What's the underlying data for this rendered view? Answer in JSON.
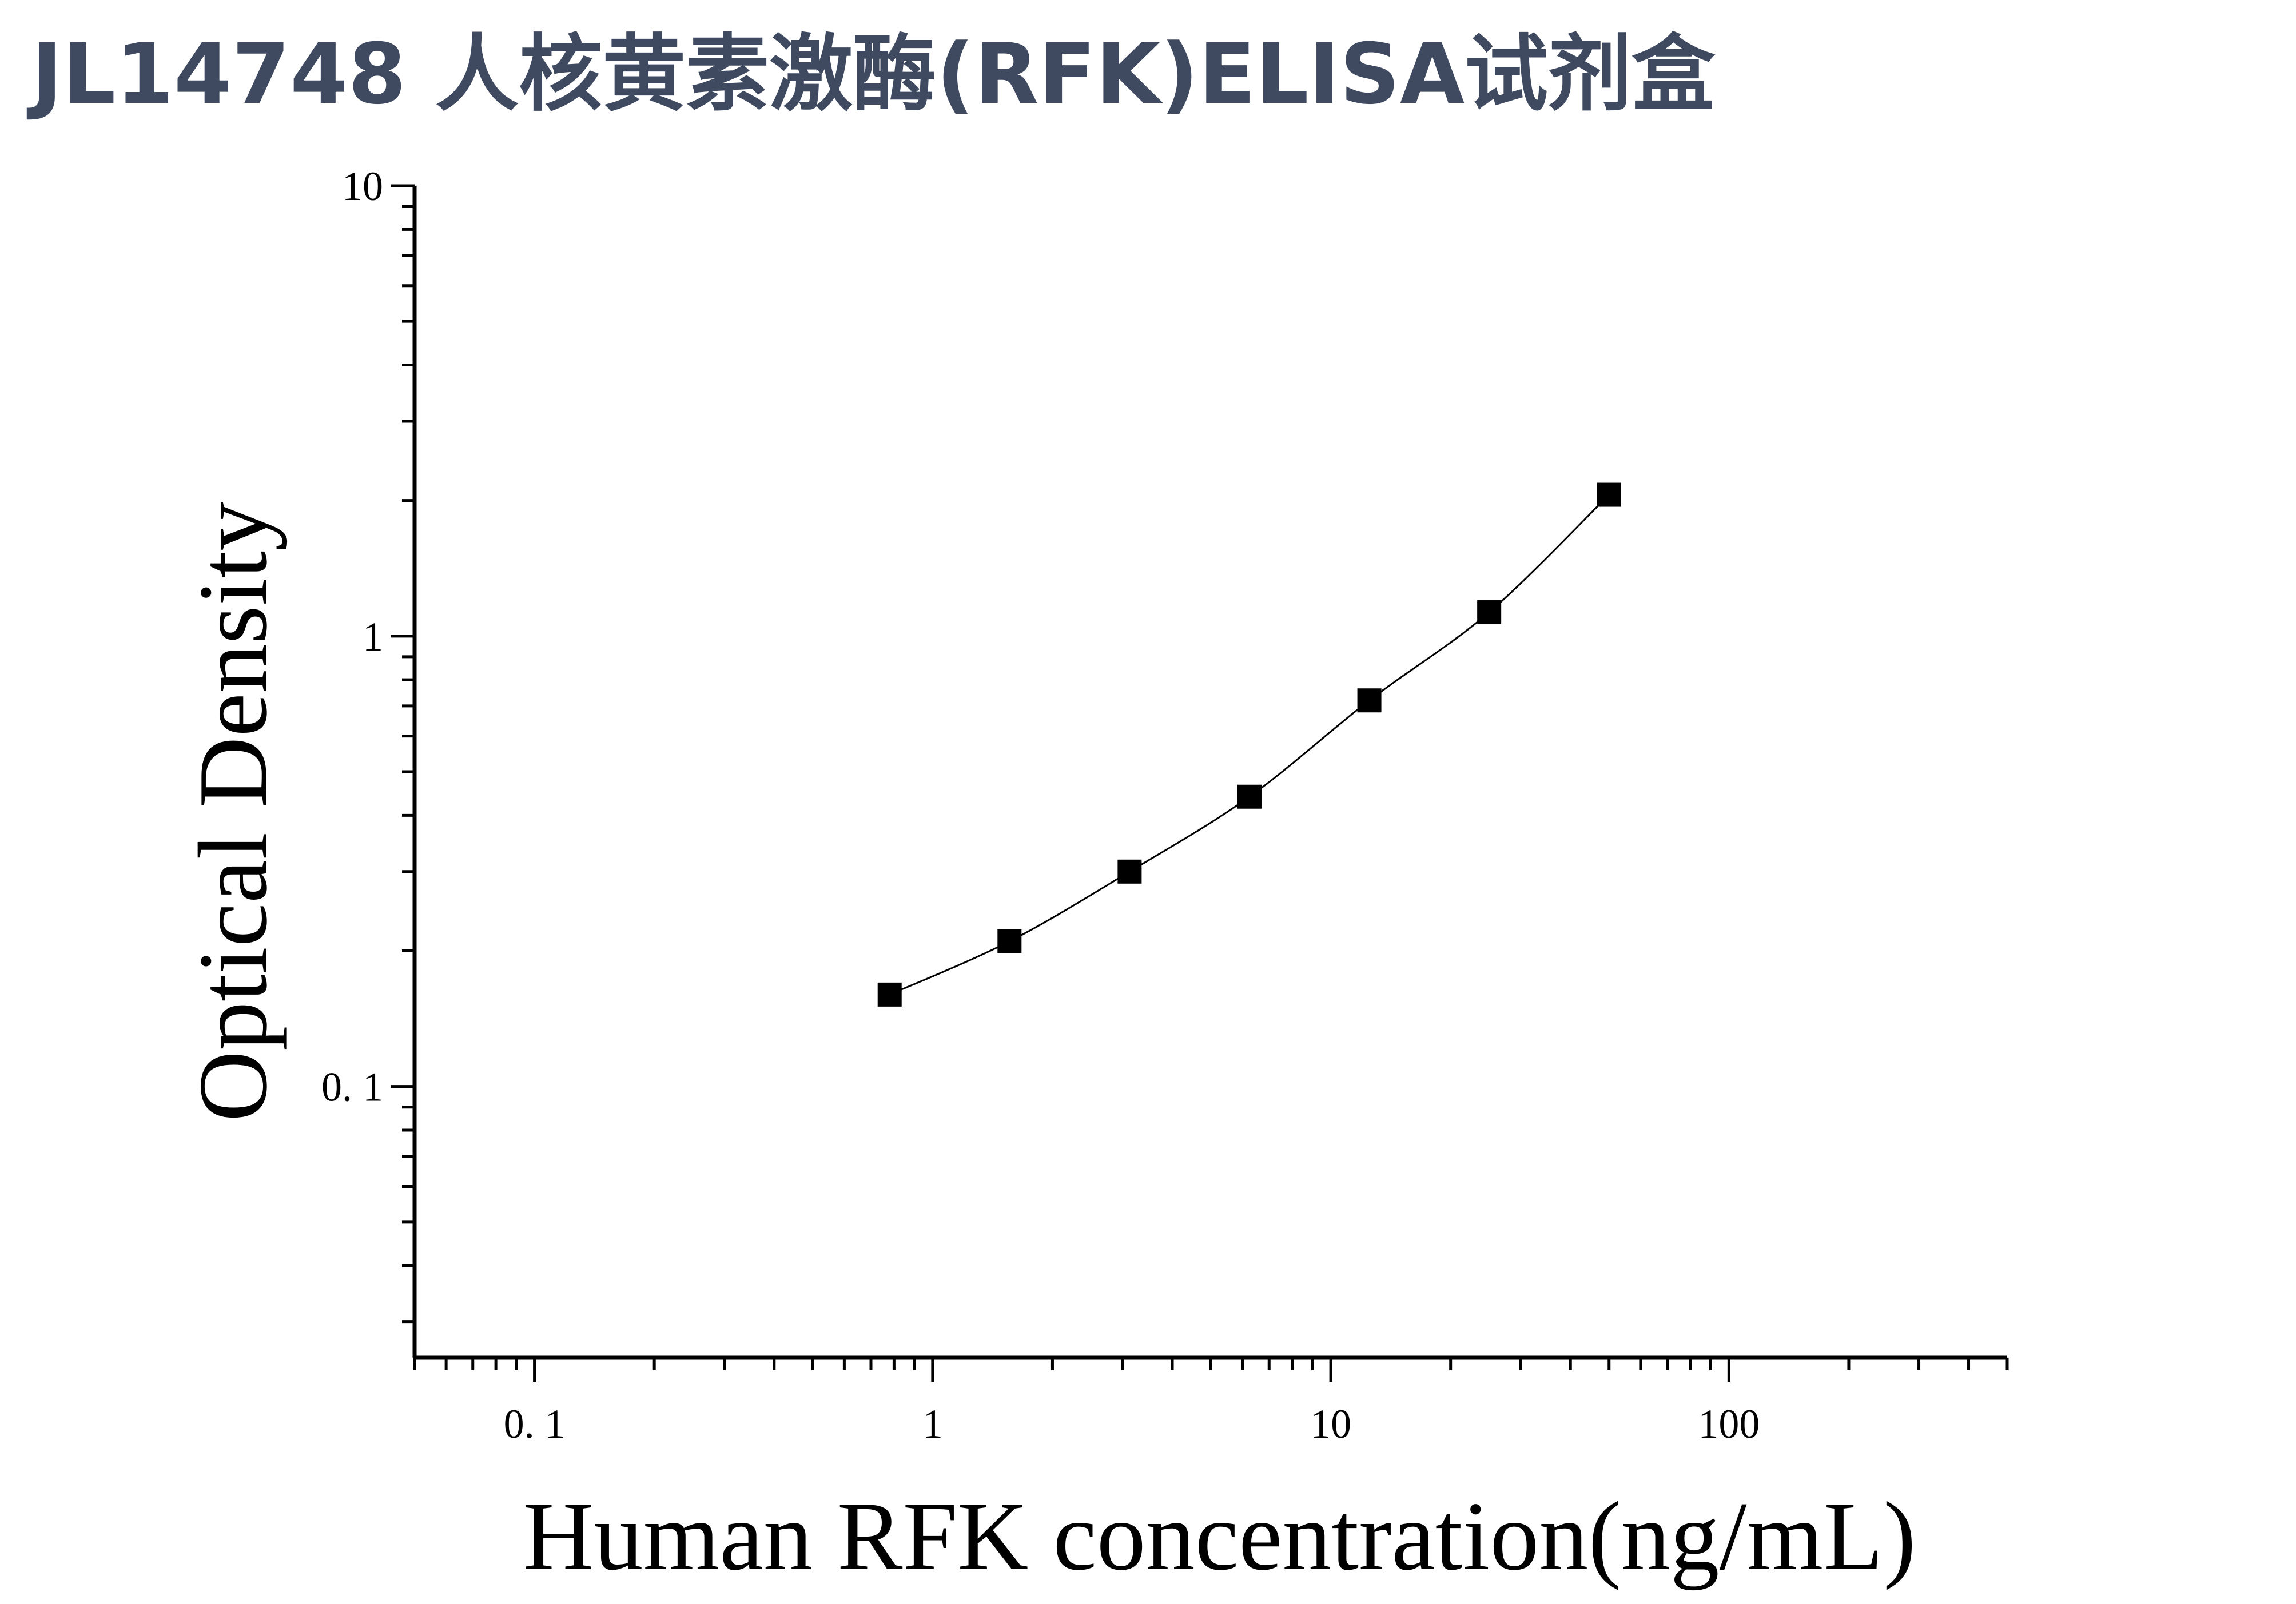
{
  "title": "JL14748 人核黄素激酶(RFK)ELISA试剂盒",
  "chart_data": {
    "type": "scatter",
    "xlabel": "Human RFK concentration(ng/mL)",
    "ylabel": "Optical Density",
    "xscale": "log",
    "yscale": "log",
    "xlim": [
      0.05,
      500
    ],
    "ylim": [
      0.025,
      10
    ],
    "xticks": [
      {
        "value": 0.1,
        "label": "0. 1"
      },
      {
        "value": 1,
        "label": "1"
      },
      {
        "value": 10,
        "label": "10"
      },
      {
        "value": 100,
        "label": "100"
      }
    ],
    "yticks": [
      {
        "value": 0.1,
        "label": "0. 1"
      },
      {
        "value": 1,
        "label": "1"
      },
      {
        "value": 10,
        "label": "10"
      }
    ],
    "series": [
      {
        "marker": "square",
        "fit_line": true,
        "color": "#000000",
        "x": [
          0.78,
          1.56,
          3.125,
          6.25,
          12.5,
          25,
          50
        ],
        "y": [
          0.16,
          0.21,
          0.3,
          0.44,
          0.72,
          1.13,
          2.06
        ]
      }
    ],
    "grid": false,
    "legend": "none"
  }
}
